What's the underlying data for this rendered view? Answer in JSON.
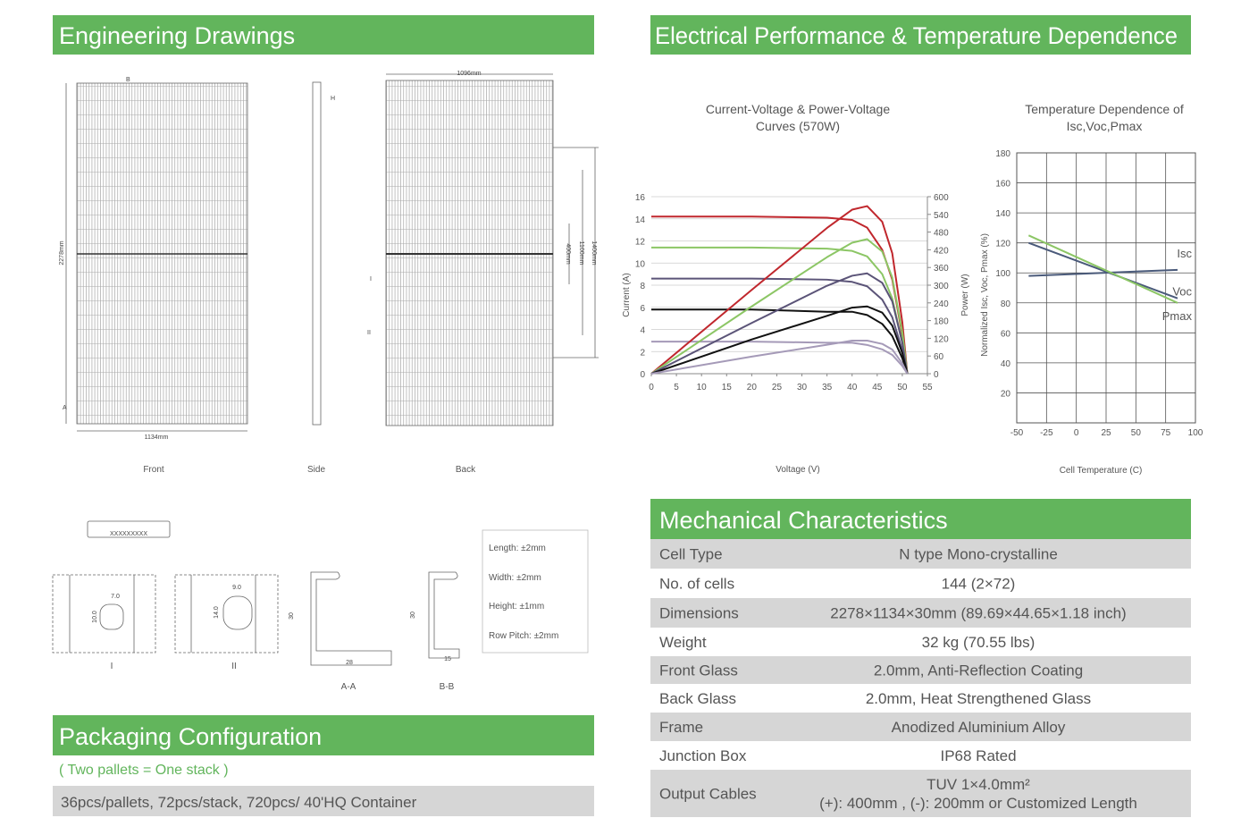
{
  "engineering_drawings": {
    "title": "Engineering Drawings",
    "dims": {
      "width_back": "1096mm",
      "height": "2278mm",
      "width_front": "1134mm",
      "back_400": "400mm",
      "back_1100": "1100mm",
      "back_1400": "1400mm"
    },
    "markers": {
      "b": "B",
      "a": "A",
      "h": "H",
      "i": "I",
      "ii": "II"
    },
    "views": [
      "Front",
      "Side",
      "Back"
    ],
    "tolerances": [
      "Length: ±2mm",
      "Width: ±2mm",
      "Height: ±1mm",
      "Row Pitch: ±2mm"
    ],
    "label_code": "XXXXXXXXX",
    "details": {
      "i_w": "7.0",
      "i_h": "10.0",
      "ii_w": "9.0",
      "ii_h": "14.0",
      "aa_h": "30",
      "aa_w": "28",
      "bb_h": "30",
      "bb_w": "15"
    },
    "sections": [
      "I",
      "II",
      "A-A",
      "B-B"
    ]
  },
  "electrical": {
    "title": "Electrical Performance & Temperature Dependence",
    "iv_chart": {
      "title_lines": [
        "Current-Voltage & Power-Voltage",
        "Curves (570W)"
      ],
      "x_label": "Voltage (V)",
      "y_label": "Current (A)",
      "y2_label": "Power (W)",
      "xlim": [
        0,
        55
      ],
      "xticks": [
        0,
        5,
        10,
        15,
        20,
        25,
        30,
        35,
        40,
        45,
        50,
        55
      ],
      "ylim": [
        0,
        16
      ],
      "yticks": [
        0,
        2,
        4,
        6,
        8,
        10,
        12,
        14,
        16
      ],
      "y2lim": [
        0,
        600
      ],
      "y2ticks": [
        0,
        60,
        120,
        180,
        240,
        300,
        360,
        420,
        480,
        540,
        600
      ],
      "x": [
        0,
        20,
        35,
        40,
        43,
        46,
        48,
        50,
        51
      ],
      "series": [
        {
          "color": "#c0272d",
          "values": [
            14.2,
            14.2,
            14.1,
            13.9,
            13.2,
            11.2,
            8.5,
            3.5,
            0
          ]
        },
        {
          "color": "#8cc665",
          "values": [
            11.4,
            11.4,
            11.3,
            11.1,
            10.6,
            9,
            6.8,
            2.8,
            0
          ]
        },
        {
          "color": "#5b5478",
          "values": [
            8.6,
            8.6,
            8.5,
            8.3,
            7.9,
            6.7,
            5.1,
            2.1,
            0
          ]
        },
        {
          "color": "#111111",
          "values": [
            5.8,
            5.8,
            5.6,
            5.6,
            5.3,
            4.5,
            3.4,
            1.4,
            0
          ]
        },
        {
          "color": "#a59ab8",
          "values": [
            2.9,
            2.9,
            2.8,
            2.8,
            2.6,
            2.2,
            1.7,
            0.7,
            0
          ]
        },
        {
          "color": "#c0272d",
          "axis": "y2",
          "values": [
            0,
            284,
            494,
            556,
            568,
            515,
            408,
            175,
            0
          ]
        },
        {
          "color": "#8cc665",
          "axis": "y2",
          "values": [
            0,
            228,
            395,
            444,
            456,
            414,
            326,
            140,
            0
          ]
        },
        {
          "color": "#5b5478",
          "axis": "y2",
          "values": [
            0,
            172,
            298,
            332,
            340,
            308,
            245,
            105,
            0
          ]
        },
        {
          "color": "#111111",
          "axis": "y2",
          "values": [
            0,
            116,
            196,
            224,
            228,
            207,
            163,
            70,
            0
          ]
        },
        {
          "color": "#a59ab8",
          "axis": "y2",
          "values": [
            0,
            58,
            98,
            112,
            112,
            101,
            82,
            35,
            0
          ]
        }
      ]
    },
    "temp_chart": {
      "title_lines": [
        "Temperature Dependence of",
        "Isc,Voc,Pmax"
      ],
      "x_label": "Cell Temperature (C)",
      "y_label": "Normalized Isc, Voc, Pmax (%)",
      "xlim": [
        -50,
        100
      ],
      "xticks": [
        -50,
        -25,
        0,
        25,
        50,
        75,
        100
      ],
      "ylim": [
        0,
        180
      ],
      "yticks": [
        20,
        40,
        60,
        80,
        100,
        120,
        140,
        160,
        180
      ],
      "series": [
        {
          "name": "Isc",
          "color": "#4a5a7a",
          "x": [
            -40,
            85
          ],
          "values": [
            98,
            102
          ]
        },
        {
          "name": "Voc",
          "color": "#4a5a7a",
          "x": [
            -40,
            85
          ],
          "values": [
            120,
            83
          ]
        },
        {
          "name": "Pmax",
          "color": "#8cc665",
          "x": [
            -40,
            85
          ],
          "values": [
            125,
            80
          ]
        }
      ]
    }
  },
  "mechanical": {
    "title": "Mechanical Characteristics",
    "rows": [
      [
        "Cell Type",
        "N type Mono-crystalline"
      ],
      [
        "No. of cells",
        "144 (2×72)"
      ],
      [
        "Dimensions",
        "2278×1134×30mm (89.69×44.65×1.18 inch)"
      ],
      [
        "Weight",
        "32 kg (70.55 lbs)"
      ],
      [
        "Front Glass",
        "2.0mm, Anti-Reflection Coating"
      ],
      [
        "Back Glass",
        "2.0mm, Heat Strengthened Glass"
      ],
      [
        "Frame",
        "Anodized Aluminium Alloy"
      ],
      [
        "Junction Box",
        "IP68 Rated"
      ],
      [
        "Output Cables",
        "TUV  1×4.0mm²",
        "(+): 400mm , (-): 200mm or Customized Length"
      ]
    ]
  },
  "packaging": {
    "title": "Packaging Configuration",
    "note": "( Two pallets = One stack )",
    "text": "36pcs/pallets, 72pcs/stack, 720pcs/ 40'HQ Container"
  }
}
